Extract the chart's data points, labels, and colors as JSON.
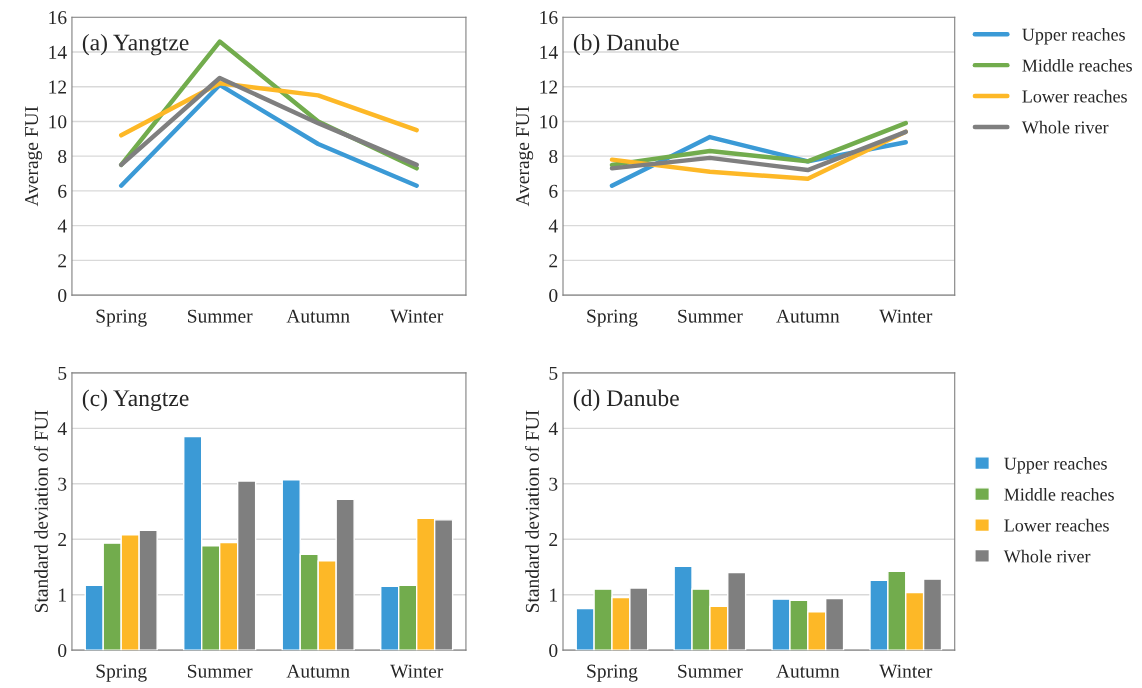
{
  "chart_data": [
    {
      "type": "line",
      "title": "(a) Yangtze",
      "ylabel": "Average FUI",
      "categories": [
        "Spring",
        "Summer",
        "Autumn",
        "Winter"
      ],
      "ylim": [
        0,
        16
      ],
      "yticks": [
        0,
        2,
        4,
        6,
        8,
        10,
        12,
        14,
        16
      ],
      "grid": "y",
      "legend": false,
      "series": [
        {
          "color": "#3b9ad6",
          "values": [
            6.3,
            12.1,
            8.7,
            6.3
          ]
        },
        {
          "color": "#72ac4d",
          "values": [
            7.5,
            14.6,
            10.0,
            7.3
          ]
        },
        {
          "color": "#fdb827",
          "values": [
            9.2,
            12.2,
            11.5,
            9.5
          ]
        },
        {
          "color": "#7f7f7f",
          "values": [
            7.5,
            12.5,
            9.9,
            7.5
          ]
        }
      ]
    },
    {
      "type": "line",
      "title": "(b) Danube",
      "ylabel": "Average FUI",
      "categories": [
        "Spring",
        "Summer",
        "Autumn",
        "Winter"
      ],
      "ylim": [
        0,
        16
      ],
      "yticks": [
        0,
        2,
        4,
        6,
        8,
        10,
        12,
        14,
        16
      ],
      "grid": "y",
      "legend": "right",
      "series": [
        {
          "name": "Upper reaches",
          "color": "#3b9ad6",
          "values": [
            6.3,
            9.1,
            7.7,
            8.8
          ]
        },
        {
          "name": "Middle reaches",
          "color": "#72ac4d",
          "values": [
            7.5,
            8.3,
            7.7,
            9.9
          ]
        },
        {
          "name": "Lower reaches",
          "color": "#fdb827",
          "values": [
            7.8,
            7.1,
            6.7,
            9.4
          ]
        },
        {
          "name": "Whole river",
          "color": "#7f7f7f",
          "values": [
            7.3,
            7.9,
            7.2,
            9.4
          ]
        }
      ]
    },
    {
      "type": "bar",
      "title": "(c) Yangtze",
      "ylabel": "Standard deviation of FUI",
      "categories": [
        "Spring",
        "Summer",
        "Autumn",
        "Winter"
      ],
      "ylim": [
        0,
        5
      ],
      "yticks": [
        0,
        1,
        2,
        3,
        4,
        5
      ],
      "grid": "y",
      "legend": false,
      "series": [
        {
          "color": "#3b9ad6",
          "values": [
            1.17,
            3.85,
            3.07,
            1.15
          ]
        },
        {
          "color": "#72ac4d",
          "values": [
            1.93,
            1.88,
            1.73,
            1.17
          ]
        },
        {
          "color": "#fdb827",
          "values": [
            2.08,
            1.94,
            1.61,
            2.38
          ]
        },
        {
          "color": "#7f7f7f",
          "values": [
            2.16,
            3.05,
            2.72,
            2.35
          ]
        }
      ]
    },
    {
      "type": "bar",
      "title": "(d) Danube",
      "ylabel": "Standard deviation of FUI",
      "categories": [
        "Spring",
        "Summer",
        "Autumn",
        "Winter"
      ],
      "ylim": [
        0,
        5
      ],
      "yticks": [
        0,
        1,
        2,
        3,
        4,
        5
      ],
      "grid": "y",
      "legend": "right",
      "series": [
        {
          "name": "Upper reaches",
          "color": "#3b9ad6",
          "values": [
            0.75,
            1.51,
            0.92,
            1.26
          ]
        },
        {
          "name": "Middle reaches",
          "color": "#72ac4d",
          "values": [
            1.1,
            1.1,
            0.9,
            1.42
          ]
        },
        {
          "name": "Lower reaches",
          "color": "#fdb827",
          "values": [
            0.95,
            0.79,
            0.69,
            1.04
          ]
        },
        {
          "name": "Whole river",
          "color": "#7f7f7f",
          "values": [
            1.12,
            1.4,
            0.93,
            1.28
          ]
        }
      ]
    }
  ]
}
